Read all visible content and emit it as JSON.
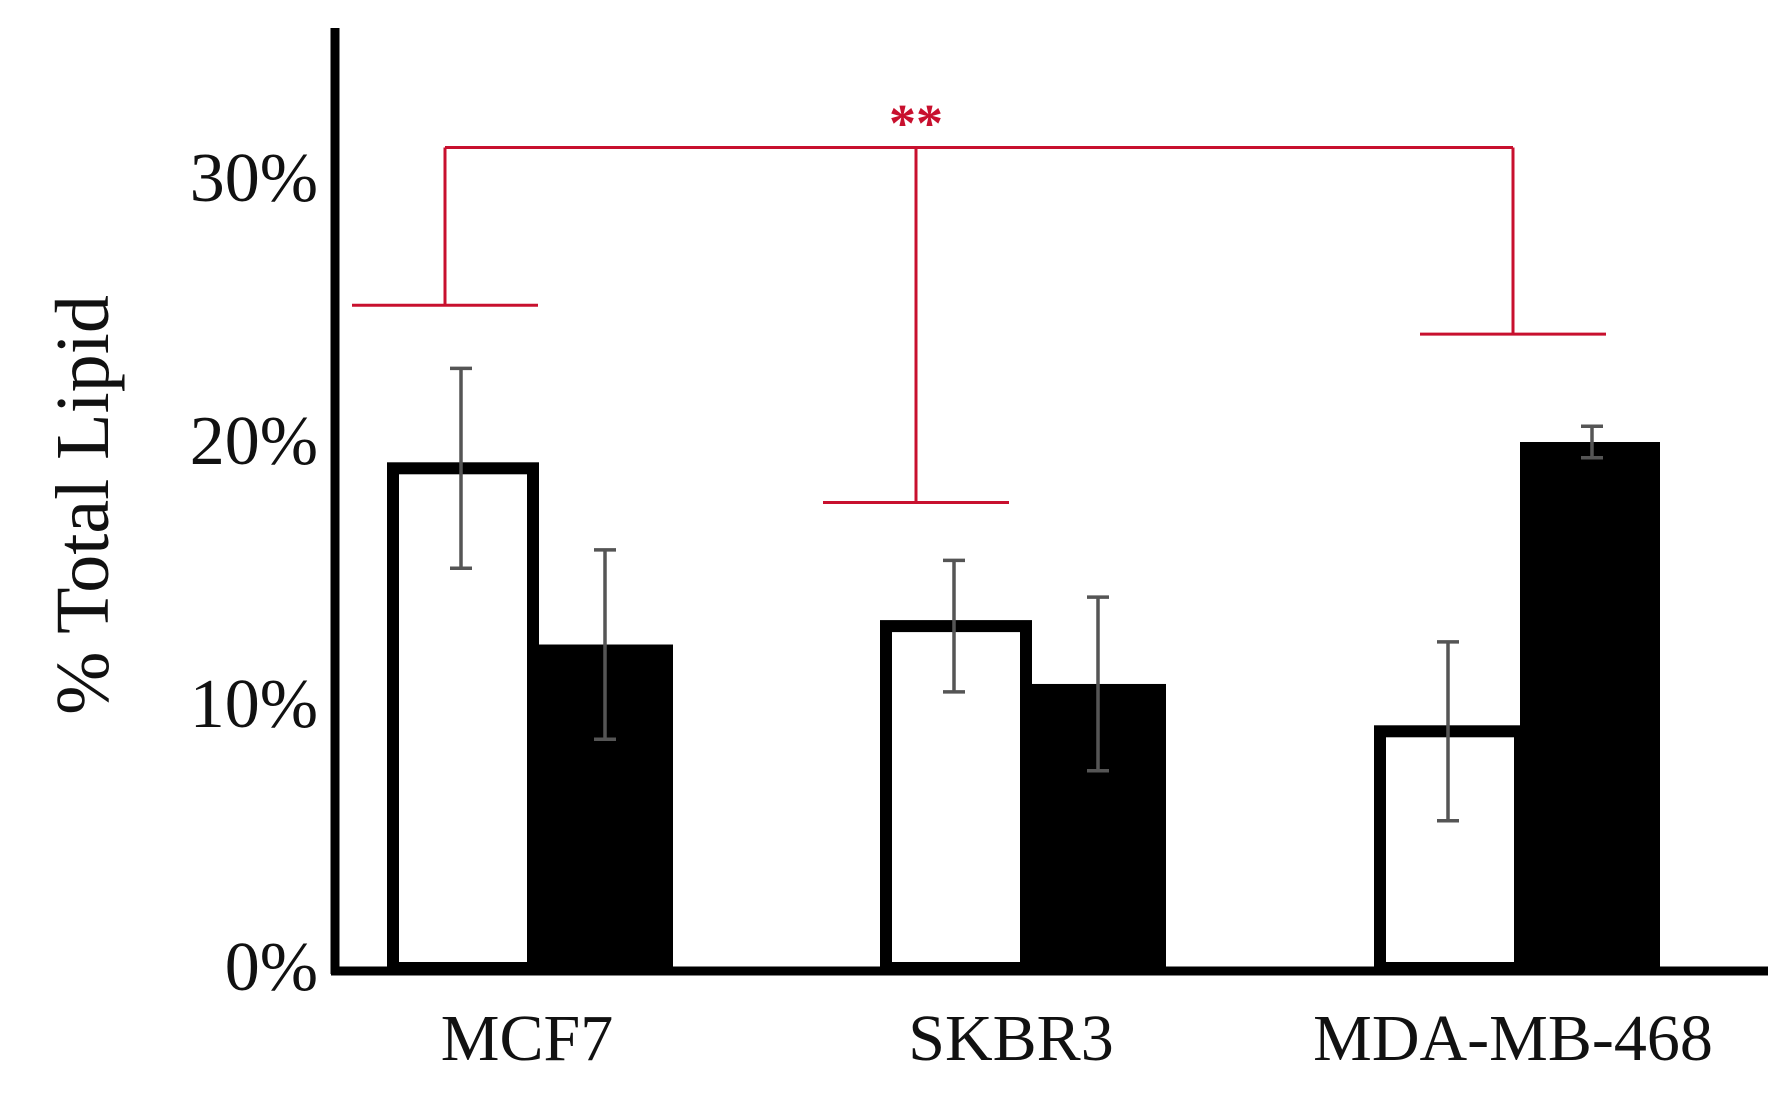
{
  "chart_data": {
    "type": "bar",
    "title": "",
    "xlabel": "",
    "ylabel": "% Total Lipid",
    "ylim": [
      0,
      35
    ],
    "yticks": [
      0,
      10,
      20,
      30
    ],
    "ytick_labels": [
      "0%",
      "10%",
      "20%",
      "30%"
    ],
    "grid": false,
    "legend": "none",
    "categories": [
      "MCF7",
      "SKBR3",
      "MDA-MB-468"
    ],
    "series": [
      {
        "name": "open bars",
        "style": "outline",
        "values": [
          19,
          13,
          9
        ],
        "error": [
          3.8,
          2.5,
          3.4
        ]
      },
      {
        "name": "filled bars",
        "style": "filled",
        "values": [
          12.3,
          10.8,
          20
        ],
        "error": [
          3.6,
          3.3,
          0.6
        ]
      }
    ],
    "significance": {
      "label": "**",
      "color": "#c8102e",
      "group_bracket_tops": [
        25.2,
        17.7,
        24.1
      ],
      "connector_level": 31.2
    },
    "colors": {
      "axis": "#000000",
      "bar_fill": "#000000",
      "bar_open_fill": "#ffffff",
      "error_bar": "#555555",
      "significance": "#c8102e"
    }
  }
}
